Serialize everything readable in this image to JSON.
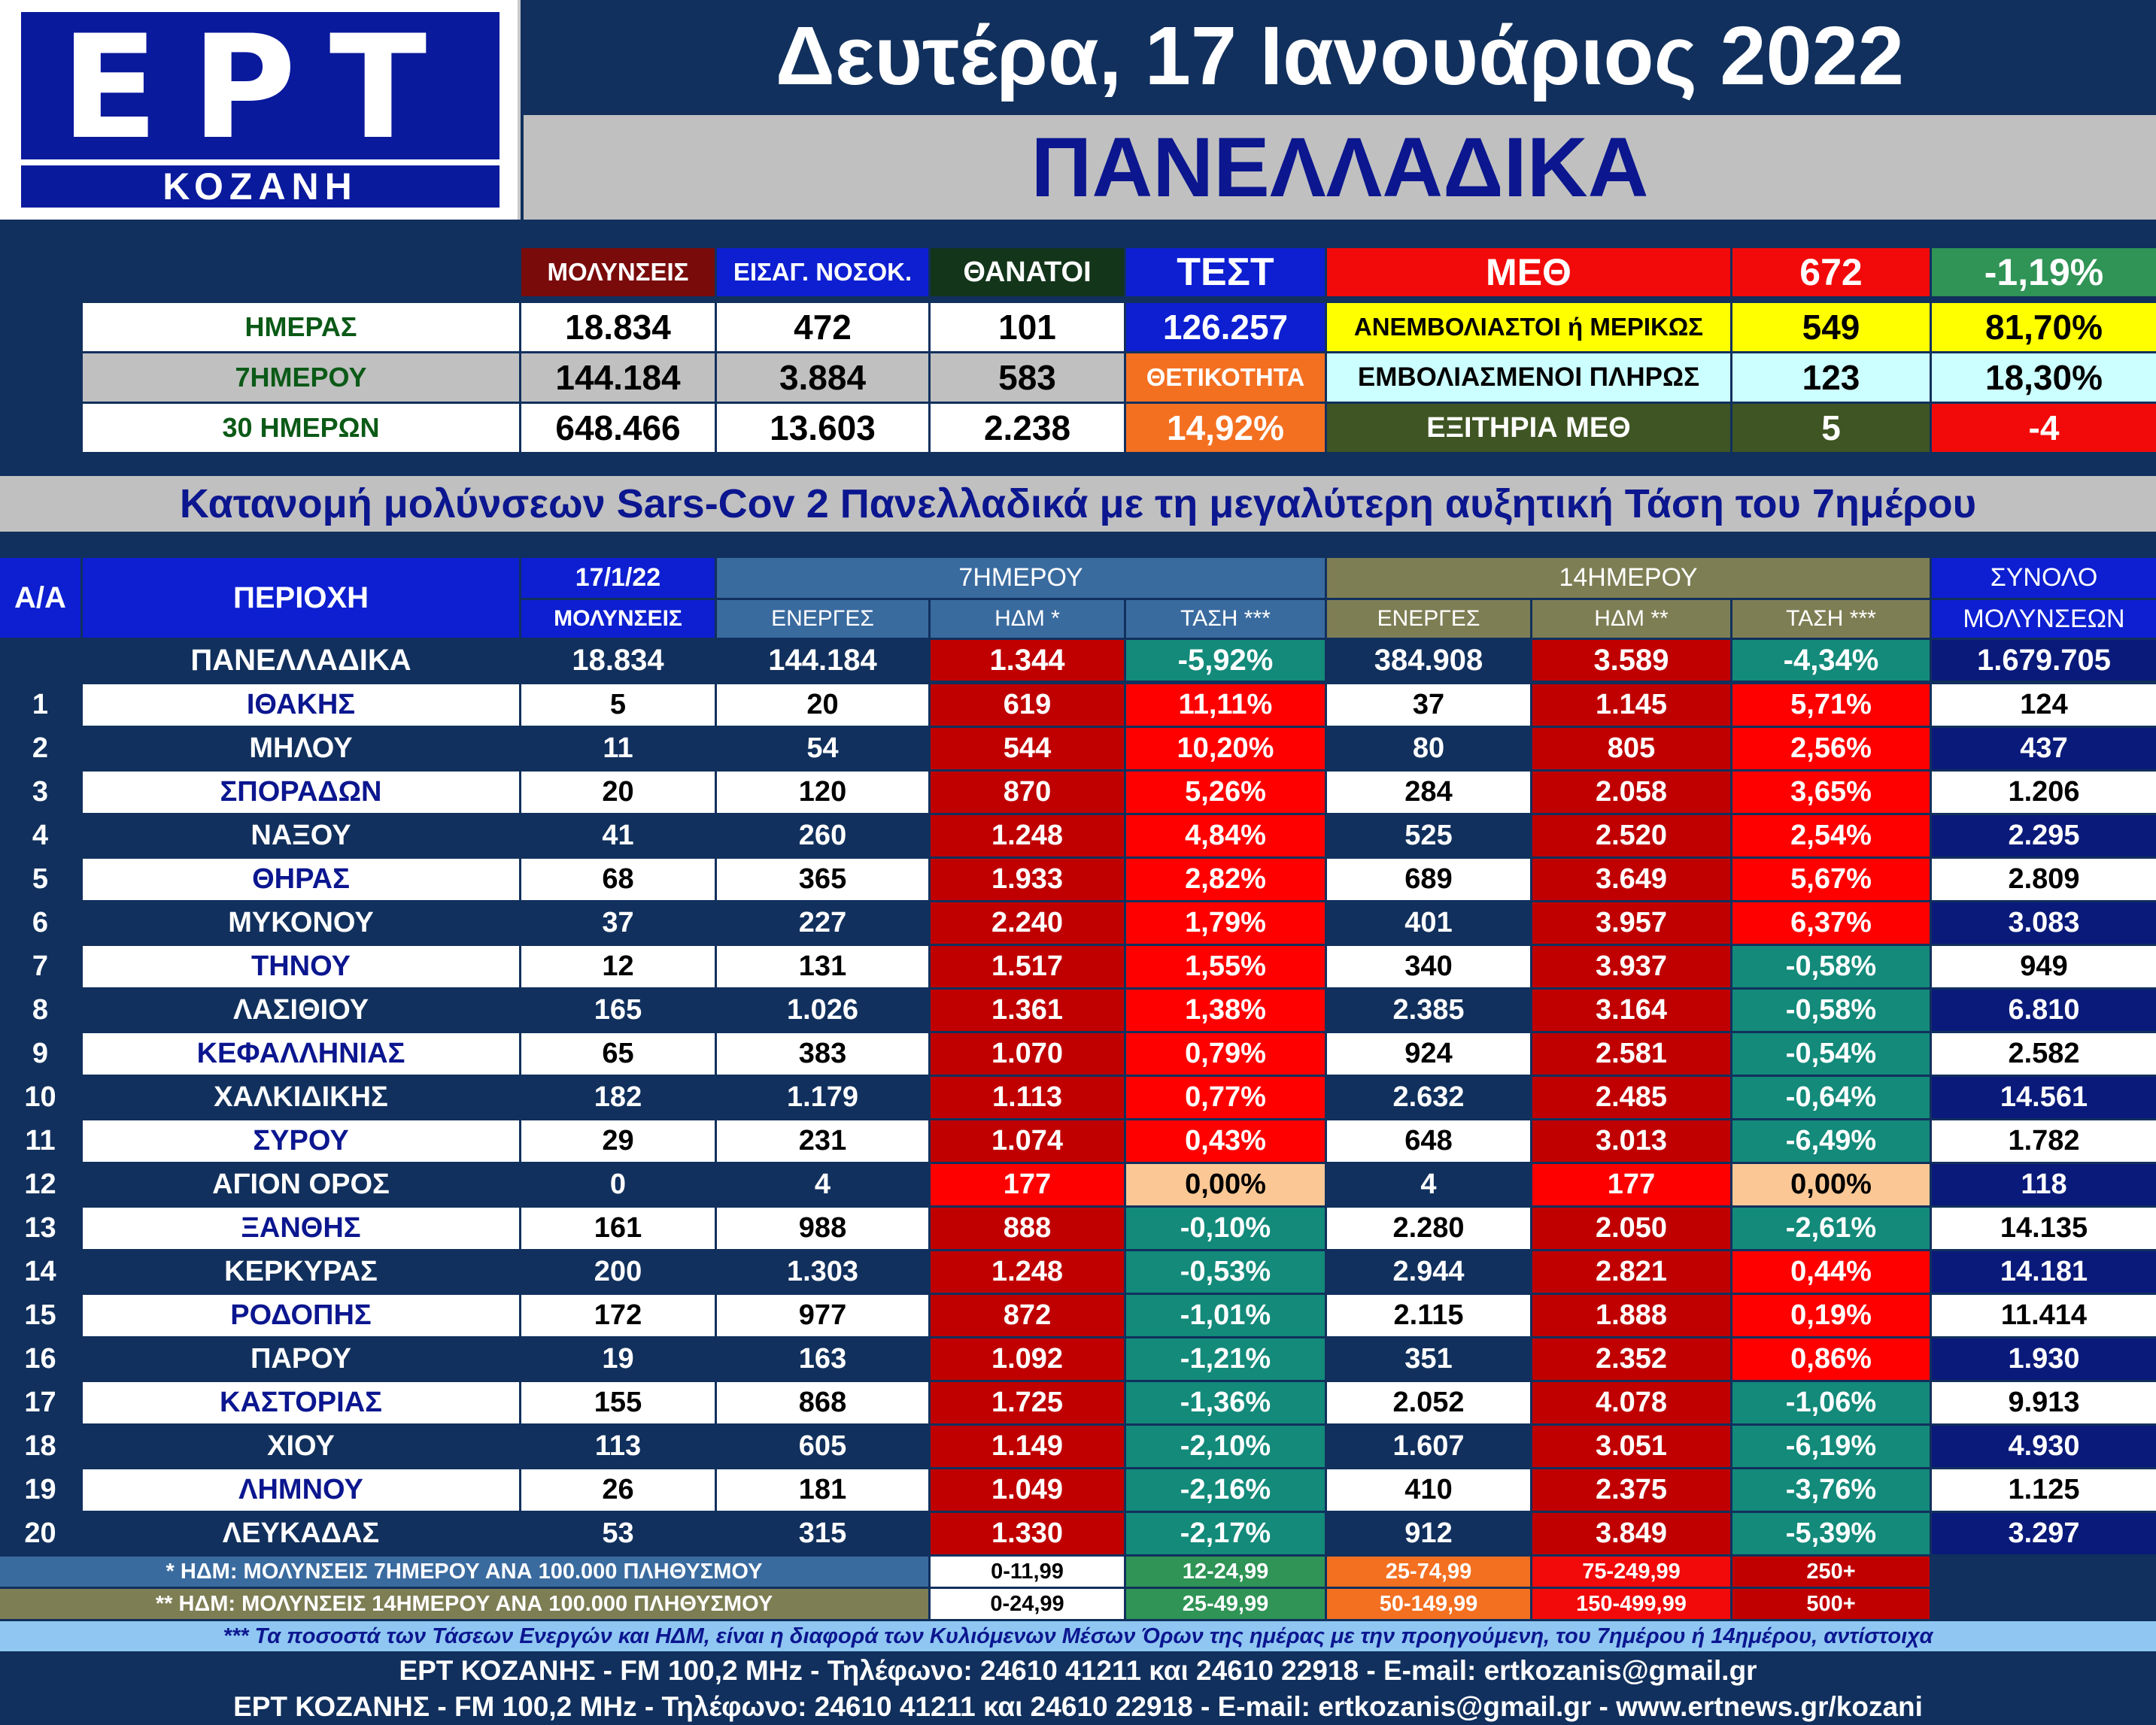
{
  "logo": {
    "brand": "ΕΡΤ",
    "city": "ΚΟΖΑΝΗ"
  },
  "header": {
    "date": "Δευτέρα, 17 Ιανουάριος 2022",
    "scope": "ΠΑΝΕΛΛΑΔΙΚΑ"
  },
  "summary": {
    "col_headers": [
      "ΜΟΛΥΝΣΕΙΣ",
      "ΕΙΣΑΓ. ΝΟΣΟΚ.",
      "ΘΑΝΑΤΟΙ"
    ],
    "rows": [
      {
        "label": "ΗΜΕΡΑΣ",
        "values": [
          "18.834",
          "472",
          "101"
        ]
      },
      {
        "label": "7ΗΜΕΡΟΥ",
        "values": [
          "144.184",
          "3.884",
          "583"
        ]
      },
      {
        "label": "30 ΗΜΕΡΩΝ",
        "values": [
          "648.466",
          "13.603",
          "2.238"
        ]
      }
    ],
    "test_label": "ΤΕΣΤ",
    "test_value": "126.257",
    "positivity_label": "ΘΕΤΙΚΟΤΗΤΑ",
    "positivity_value": "14,92%",
    "icu_label": "ΜΕΘ",
    "icu_value": "672",
    "icu_change": "-1,19%",
    "unvax_label": "ΑΝΕΜΒΟΛΙΑΣΤΟΙ ή ΜΕΡΙΚΩΣ",
    "unvax_value": "549",
    "unvax_pct": "81,70%",
    "vax_label": "ΕΜΒΟΛΙΑΣΜΕΝΟΙ ΠΛΗΡΩΣ",
    "vax_value": "123",
    "vax_pct": "18,30%",
    "discharged_label": "ΕΞΙΤΗΡΙΑ ΜΕΘ",
    "discharged_value": "5",
    "discharged_change": "-4"
  },
  "subtitle": "Κατανομή μολύνσεων Sars-Cov 2 Πανελλαδικά με τη μεγαλύτερη αυξητική Τάση του 7ημέρου",
  "table": {
    "headers": {
      "aa": "Α/Α",
      "area": "ΠΕΡΙΟΧΗ",
      "date": "17/1/22",
      "infections": "ΜΟΛΥΝΣΕΙΣ",
      "week": "7ΗΜΕΡΟΥ",
      "fortnight": "14ΗΜΕΡΟΥ",
      "active": "ΕΝΕΡΓΕΣ",
      "hdm7": "ΗΔΜ *",
      "trend": "ΤΑΣΗ ***",
      "hdm14": "ΗΔΜ **",
      "total1": "ΣΥΝΟΛΟ",
      "total2": "ΜΟΛΥΝΣΕΩΝ"
    },
    "national": {
      "name": "ΠΑΝΕΛΛΑΔΙΚΑ",
      "day": "18.834",
      "act7": "144.184",
      "hdm7": "1.344",
      "trend7": "-5,92%",
      "act14": "384.908",
      "hdm14": "3.589",
      "trend14": "-4,34%",
      "total": "1.679.705"
    },
    "rows": [
      {
        "n": "1",
        "name": "ΙΘΑΚΗΣ",
        "day": "5",
        "act7": "20",
        "hdm7": "619",
        "trend7": "11,11%",
        "act14": "37",
        "hdm14": "1.145",
        "trend14": "5,71%",
        "total": "124"
      },
      {
        "n": "2",
        "name": "ΜΗΛΟΥ",
        "day": "11",
        "act7": "54",
        "hdm7": "544",
        "trend7": "10,20%",
        "act14": "80",
        "hdm14": "805",
        "trend14": "2,56%",
        "total": "437"
      },
      {
        "n": "3",
        "name": "ΣΠΟΡΑΔΩΝ",
        "day": "20",
        "act7": "120",
        "hdm7": "870",
        "trend7": "5,26%",
        "act14": "284",
        "hdm14": "2.058",
        "trend14": "3,65%",
        "total": "1.206"
      },
      {
        "n": "4",
        "name": "ΝΑΞΟΥ",
        "day": "41",
        "act7": "260",
        "hdm7": "1.248",
        "trend7": "4,84%",
        "act14": "525",
        "hdm14": "2.520",
        "trend14": "2,54%",
        "total": "2.295"
      },
      {
        "n": "5",
        "name": "ΘΗΡΑΣ",
        "day": "68",
        "act7": "365",
        "hdm7": "1.933",
        "trend7": "2,82%",
        "act14": "689",
        "hdm14": "3.649",
        "trend14": "5,67%",
        "total": "2.809"
      },
      {
        "n": "6",
        "name": "ΜΥΚΟΝΟΥ",
        "day": "37",
        "act7": "227",
        "hdm7": "2.240",
        "trend7": "1,79%",
        "act14": "401",
        "hdm14": "3.957",
        "trend14": "6,37%",
        "total": "3.083"
      },
      {
        "n": "7",
        "name": "ΤΗΝΟΥ",
        "day": "12",
        "act7": "131",
        "hdm7": "1.517",
        "trend7": "1,55%",
        "act14": "340",
        "hdm14": "3.937",
        "trend14": "-0,58%",
        "total": "949"
      },
      {
        "n": "8",
        "name": "ΛΑΣΙΘΙΟΥ",
        "day": "165",
        "act7": "1.026",
        "hdm7": "1.361",
        "trend7": "1,38%",
        "act14": "2.385",
        "hdm14": "3.164",
        "trend14": "-0,58%",
        "total": "6.810"
      },
      {
        "n": "9",
        "name": "ΚΕΦΑΛΛΗΝΙΑΣ",
        "day": "65",
        "act7": "383",
        "hdm7": "1.070",
        "trend7": "0,79%",
        "act14": "924",
        "hdm14": "2.581",
        "trend14": "-0,54%",
        "total": "2.582"
      },
      {
        "n": "10",
        "name": "ΧΑΛΚΙΔΙΚΗΣ",
        "day": "182",
        "act7": "1.179",
        "hdm7": "1.113",
        "trend7": "0,77%",
        "act14": "2.632",
        "hdm14": "2.485",
        "trend14": "-0,64%",
        "total": "14.561"
      },
      {
        "n": "11",
        "name": "ΣΥΡΟΥ",
        "day": "29",
        "act7": "231",
        "hdm7": "1.074",
        "trend7": "0,43%",
        "act14": "648",
        "hdm14": "3.013",
        "trend14": "-6,49%",
        "total": "1.782"
      },
      {
        "n": "12",
        "name": "ΑΓΙΟΝ ΟΡΟΣ",
        "day": "0",
        "act7": "4",
        "hdm7": "177",
        "trend7": "0,00%",
        "act14": "4",
        "hdm14": "177",
        "trend14": "0,00%",
        "total": "118"
      },
      {
        "n": "13",
        "name": "ΞΑΝΘΗΣ",
        "day": "161",
        "act7": "988",
        "hdm7": "888",
        "trend7": "-0,10%",
        "act14": "2.280",
        "hdm14": "2.050",
        "trend14": "-2,61%",
        "total": "14.135"
      },
      {
        "n": "14",
        "name": "ΚΕΡΚΥΡΑΣ",
        "day": "200",
        "act7": "1.303",
        "hdm7": "1.248",
        "trend7": "-0,53%",
        "act14": "2.944",
        "hdm14": "2.821",
        "trend14": "0,44%",
        "total": "14.181"
      },
      {
        "n": "15",
        "name": "ΡΟΔΟΠΗΣ",
        "day": "172",
        "act7": "977",
        "hdm7": "872",
        "trend7": "-1,01%",
        "act14": "2.115",
        "hdm14": "1.888",
        "trend14": "0,19%",
        "total": "11.414"
      },
      {
        "n": "16",
        "name": "ΠΑΡΟΥ",
        "day": "19",
        "act7": "163",
        "hdm7": "1.092",
        "trend7": "-1,21%",
        "act14": "351",
        "hdm14": "2.352",
        "trend14": "0,86%",
        "total": "1.930"
      },
      {
        "n": "17",
        "name": "ΚΑΣΤΟΡΙΑΣ",
        "day": "155",
        "act7": "868",
        "hdm7": "1.725",
        "trend7": "-1,36%",
        "act14": "2.052",
        "hdm14": "4.078",
        "trend14": "-1,06%",
        "total": "9.913"
      },
      {
        "n": "18",
        "name": "ΧΙΟΥ",
        "day": "113",
        "act7": "605",
        "hdm7": "1.149",
        "trend7": "-2,10%",
        "act14": "1.607",
        "hdm14": "3.051",
        "trend14": "-6,19%",
        "total": "4.930"
      },
      {
        "n": "19",
        "name": "ΛΗΜΝΟΥ",
        "day": "26",
        "act7": "181",
        "hdm7": "1.049",
        "trend7": "-2,16%",
        "act14": "410",
        "hdm14": "2.375",
        "trend14": "-3,76%",
        "total": "1.125"
      },
      {
        "n": "20",
        "name": "ΛΕΥΚΑΔΑΣ",
        "day": "53",
        "act7": "315",
        "hdm7": "1.330",
        "trend7": "-2,17%",
        "act14": "912",
        "hdm14": "3.849",
        "trend14": "-5,39%",
        "total": "3.297"
      }
    ]
  },
  "legend": {
    "note7": "* ΗΔΜ: ΜΟΛΥΝΣΕΙΣ 7ΗΜΕΡΟΥ ΑΝΑ 100.000 ΠΛΗΘΥΣΜΟΥ",
    "note14": "** ΗΔΜ: ΜΟΛΥΝΣΕΙΣ 14ΗΜΕΡΟΥ ΑΝΑ 100.000 ΠΛΗΘΥΣΜΟΥ",
    "ranges7": [
      "0-11,99",
      "12-24,99",
      "25-74,99",
      "75-249,99",
      "250+"
    ],
    "ranges14": [
      "0-24,99",
      "25-49,99",
      "50-149,99",
      "150-499,99",
      "500+"
    ]
  },
  "footnote": "*** Τα ποσοστά των Τάσεων Ενεργών και ΗΔΜ, είναι η διαφορά των Κυλιόμενων Μέσων Όρων της ημέρας με την προηγούμενη, του 7ημέρου ή 14ημέρου, αντίστοιχα",
  "footer": {
    "line1": "ΕΡΤ ΚΟΖΑΝΗΣ - FM 100,2 MHz - Τηλέφωνο:  24610 41211 και 24610 22918 - E-mail: ertkozanis@gmail.gr",
    "line2": "ΕΡΤ ΚΟΖΑΝΗΣ - FM 100,2 MHz - Τηλέφωνο:  24610 41211 και 24610 22918 - E-mail: ertkozanis@gmail.gr - www.ertnews.gr/kozani"
  }
}
